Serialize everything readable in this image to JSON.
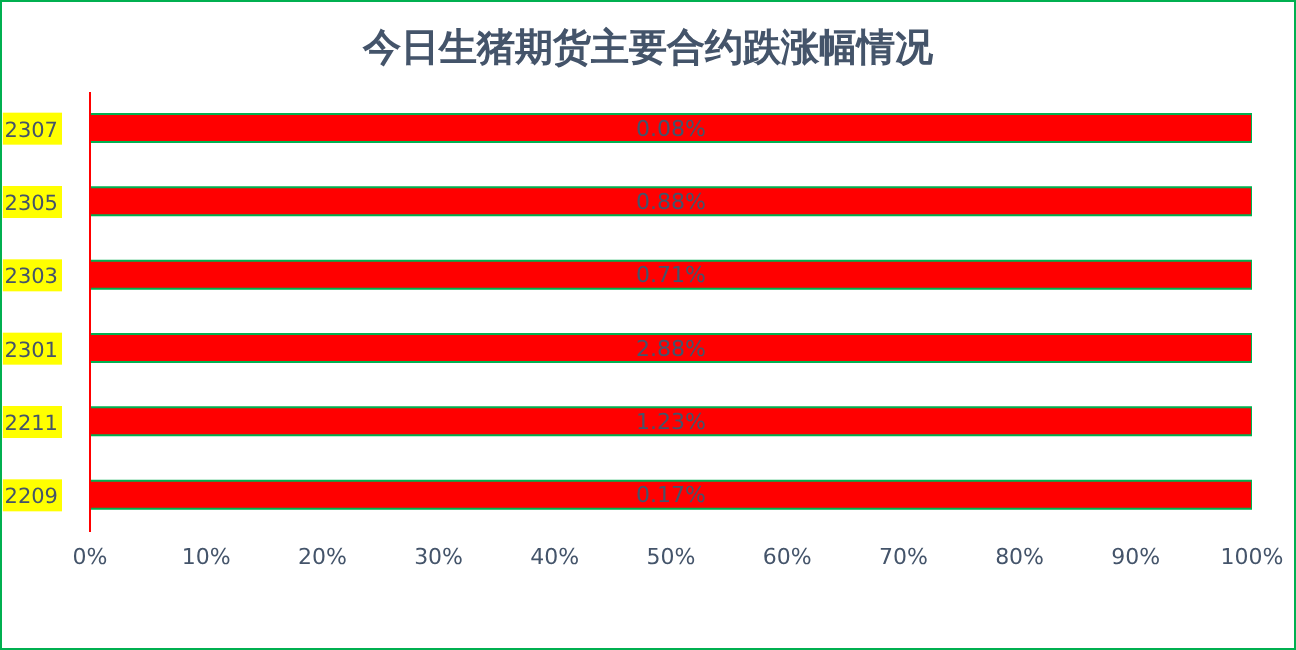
{
  "chart_data": {
    "type": "bar",
    "orientation": "horizontal",
    "title": "今日生猪期货主要合约跌涨幅情况",
    "categories": [
      "2307",
      "2305",
      "2303",
      "2301",
      "2211",
      "2209"
    ],
    "values": [
      100,
      100,
      100,
      100,
      100,
      100
    ],
    "color": "#ff0000",
    "annotations": [
      "0.08%",
      "0.88%",
      "0.71%",
      "2.88%",
      "1.23%",
      "0.17%"
    ],
    "xlim": [
      0,
      100
    ],
    "xticks": [
      {
        "value": 0,
        "label": "0%"
      },
      {
        "value": 10,
        "label": "10%"
      },
      {
        "value": 20,
        "label": "20%"
      },
      {
        "value": 30,
        "label": "30%"
      },
      {
        "value": 40,
        "label": "40%"
      },
      {
        "value": 50,
        "label": "50%"
      },
      {
        "value": 60,
        "label": "60%"
      },
      {
        "value": 70,
        "label": "70%"
      },
      {
        "value": 80,
        "label": "80%"
      },
      {
        "value": 90,
        "label": "90%"
      },
      {
        "value": 100,
        "label": "100%"
      }
    ],
    "grid": false,
    "legend": false
  }
}
